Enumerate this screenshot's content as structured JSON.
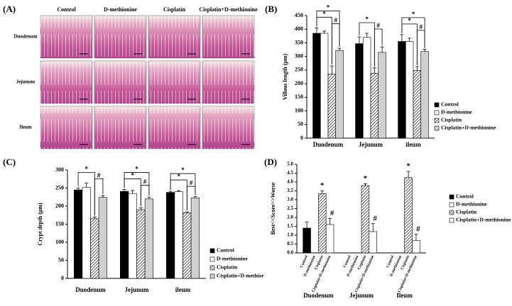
{
  "panel_a": {
    "label": "(A)",
    "columns": [
      "Control",
      "D-methionine",
      "Cisplatin",
      "Cisplatin+D-methionine"
    ],
    "rows": [
      "Duodenum",
      "Jejunum",
      "Ileum"
    ]
  },
  "chart_data": [
    {
      "type": "bar",
      "panel_label": "(B)",
      "ylabel": "Villous length (μm)",
      "categories": [
        "Duodenum",
        "Jejunum",
        "ileum"
      ],
      "series": [
        {
          "name": "Control",
          "color": "#000000",
          "values": [
            385,
            347,
            355
          ],
          "errors": [
            20,
            25,
            25
          ]
        },
        {
          "name": "D-methionine",
          "color": "#ffffff",
          "values": [
            385,
            370,
            355
          ],
          "errors": [
            8,
            15,
            12
          ]
        },
        {
          "name": "Cisplatin",
          "color": "#555555",
          "values": [
            235,
            238,
            248
          ],
          "errors": [
            30,
            20,
            15
          ]
        },
        {
          "name": "Cisplatin+D-methionine",
          "color": "#d0d0d0",
          "values": [
            322,
            315,
            318
          ],
          "errors": [
            8,
            20,
            8
          ]
        }
      ],
      "brackets": [
        {
          "group": 0,
          "from": 2,
          "to": 3,
          "text": "#"
        },
        {
          "group": 0,
          "from": 0,
          "to": 2,
          "text": "*"
        },
        {
          "group": 0,
          "from": 0,
          "to": 3,
          "text": "*"
        },
        {
          "group": 1,
          "from": 2,
          "to": 3,
          "text": "#"
        },
        {
          "group": 1,
          "from": 0,
          "to": 2,
          "text": "*"
        },
        {
          "group": 2,
          "from": 2,
          "to": 3,
          "text": "#"
        },
        {
          "group": 2,
          "from": 0,
          "to": 2,
          "text": "*"
        },
        {
          "group": 2,
          "from": 0,
          "to": 3,
          "text": "*"
        }
      ],
      "ylim": [
        0,
        450
      ],
      "yticks": [
        0,
        50,
        100,
        150,
        200,
        250,
        300,
        350,
        400,
        450
      ]
    },
    {
      "type": "bar",
      "panel_label": "(C)",
      "ylabel": "Crypt depth (μm)",
      "categories": [
        "Duodenum",
        "Jejunum",
        "ileum"
      ],
      "series": [
        {
          "name": "Control",
          "color": "#000000",
          "values": [
            245,
            241,
            238
          ],
          "errors": [
            5,
            5,
            3
          ]
        },
        {
          "name": "D-methionine",
          "color": "#ffffff",
          "values": [
            252,
            235,
            240
          ],
          "errors": [
            12,
            8,
            3
          ]
        },
        {
          "name": "Cisplatin",
          "color": "#555555",
          "values": [
            165,
            190,
            181
          ],
          "errors": [
            5,
            5,
            3
          ]
        },
        {
          "name": "Cisplatin+D-methior",
          "color": "#d0d0d0",
          "values": [
            224,
            220,
            223
          ],
          "errors": [
            5,
            5,
            4
          ]
        }
      ],
      "brackets": [
        {
          "group": 0,
          "from": 2,
          "to": 3,
          "text": "#"
        },
        {
          "group": 0,
          "from": 0,
          "to": 2,
          "text": "*"
        },
        {
          "group": 1,
          "from": 2,
          "to": 3,
          "text": "#"
        },
        {
          "group": 1,
          "from": 0,
          "to": 2,
          "text": "*"
        },
        {
          "group": 1,
          "from": 0,
          "to": 3,
          "text": "*"
        },
        {
          "group": 2,
          "from": 2,
          "to": 3,
          "text": "#"
        },
        {
          "group": 2,
          "from": 0,
          "to": 2,
          "text": "*"
        },
        {
          "group": 2,
          "from": 0,
          "to": 3,
          "text": "*"
        }
      ],
      "ylim": [
        0,
        300
      ],
      "yticks": [
        0,
        50,
        100,
        150,
        200,
        250,
        300
      ]
    },
    {
      "type": "bar",
      "panel_label": "(D)",
      "ylabel": "Best<<Score>>Worse",
      "categories": [
        "Duodenum",
        "Jejunum",
        "Ileum"
      ],
      "bar_name_labels": true,
      "series": [
        {
          "name": "Control",
          "color": "#000000",
          "values": [
            1.4,
            0,
            0
          ],
          "errors": [
            0.35,
            0,
            0
          ]
        },
        {
          "name": "D-methionine",
          "color": "#ffffff",
          "values": [
            0,
            0,
            0
          ],
          "errors": [
            0,
            0,
            0
          ]
        },
        {
          "name": "Cisplatin",
          "color": "#555555",
          "values": [
            3.35,
            3.8,
            4.25
          ],
          "errors": [
            0.15,
            0.1,
            0.35
          ],
          "annotations": [
            "*",
            "*",
            "*"
          ]
        },
        {
          "name": "Cisplatin+D-methionine",
          "color": "#ffffff",
          "values": [
            1.6,
            1.2,
            0.7
          ],
          "errors": [
            0.35,
            0.45,
            0.35
          ],
          "annotations": [
            "#",
            "#",
            "#"
          ]
        }
      ],
      "ylim": [
        0,
        5
      ],
      "yticks": [
        {
          "value": 0,
          "label": "0.0"
        },
        0.5,
        {
          "value": 1,
          "label": "1.0"
        },
        1.5,
        {
          "value": 2,
          "label": "2.0"
        },
        2.5,
        {
          "value": 3,
          "label": "3.0"
        },
        3.5,
        {
          "value": 4,
          "label": "4.0"
        },
        4.5,
        {
          "value": 5,
          "label": "5.0"
        }
      ]
    }
  ]
}
